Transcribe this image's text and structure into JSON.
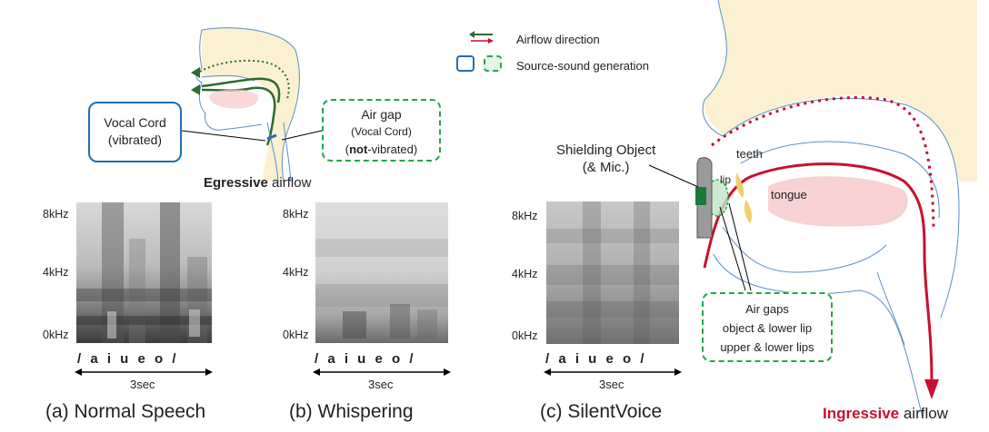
{
  "legend": {
    "airflow": "Airflow direction",
    "source": "Source-sound  generation"
  },
  "left_diagram": {
    "vocal_cord": [
      "Vocal Cord",
      "(vibrated)"
    ],
    "air_gap_title": "Air gap",
    "air_gap_sub": "(Vocal Cord)",
    "air_gap_not": "not",
    "air_gap_rest": "-vibrated)",
    "air_gap_open": "(",
    "egressive_bold": "Egressive",
    "egressive_rest": " airflow"
  },
  "spectrograms": [
    {
      "ticks": [
        "8kHz",
        "4kHz",
        "0kHz"
      ],
      "phonemes": "/ a  i  u  e  o /",
      "duration": "3sec",
      "caption": "(a) Normal Speech"
    },
    {
      "ticks": [
        "8kHz",
        "4kHz",
        "0kHz"
      ],
      "phonemes": "/ a  i  u  e  o /",
      "duration": "3sec",
      "caption": "(b) Whispering"
    },
    {
      "ticks": [
        "8kHz",
        "4kHz",
        "0kHz"
      ],
      "phonemes": "/ a  i  u  e  o /",
      "duration": "3sec",
      "caption": "(c) SilentVoice"
    }
  ],
  "right_diagram": {
    "shielding": [
      "Shielding Object",
      "(& Mic.)"
    ],
    "teeth": "teeth",
    "lip": "lip",
    "tongue": "tongue",
    "air_gaps": [
      "Air gaps",
      "object & lower lip",
      "upper & lower lips"
    ],
    "ingressive_bold": "Ingressive",
    "ingressive_rest": " airflow"
  },
  "colors": {
    "blue": "#1f6fb2",
    "green": "#1fa84a",
    "red": "#c8102e",
    "darkgreen": "#2e6b2e",
    "skin": "#fbf1d2",
    "tongue": "#f6c7c8"
  }
}
